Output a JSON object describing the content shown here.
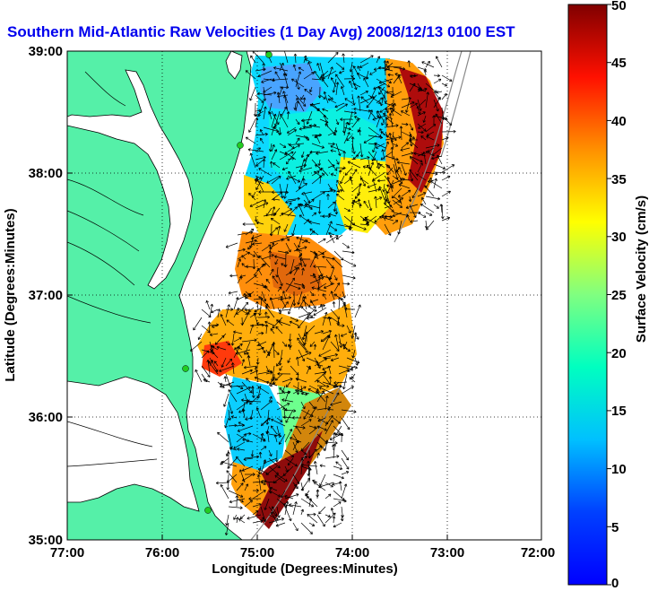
{
  "chart_data": {
    "type": "heatmap",
    "title": "Southern Mid-Atlantic Raw Velocities (1 Day Avg) 2008/12/13 0100 EST",
    "xlabel": "Longitude (Degrees:Minutes)",
    "ylabel": "Latitude (Degrees:Minutes)",
    "colorbar_label": "Surface Velocity (cm/s)",
    "x_ticks": [
      "77:00",
      "76:00",
      "75:00",
      "74:00",
      "73:00",
      "72:00"
    ],
    "y_ticks": [
      "39:00",
      "38:00",
      "37:00",
      "36:00",
      "35:00"
    ],
    "colorbar_ticks": [
      "0",
      "5",
      "10",
      "15",
      "20",
      "25",
      "30",
      "35",
      "40",
      "45",
      "50"
    ],
    "xlim": [
      -77,
      -72
    ],
    "ylim": [
      35,
      39
    ],
    "clim": [
      0,
      50
    ],
    "grid": true,
    "colormap": "jet",
    "land_color": "#55f0a8",
    "station_color": "#22cc22"
  }
}
